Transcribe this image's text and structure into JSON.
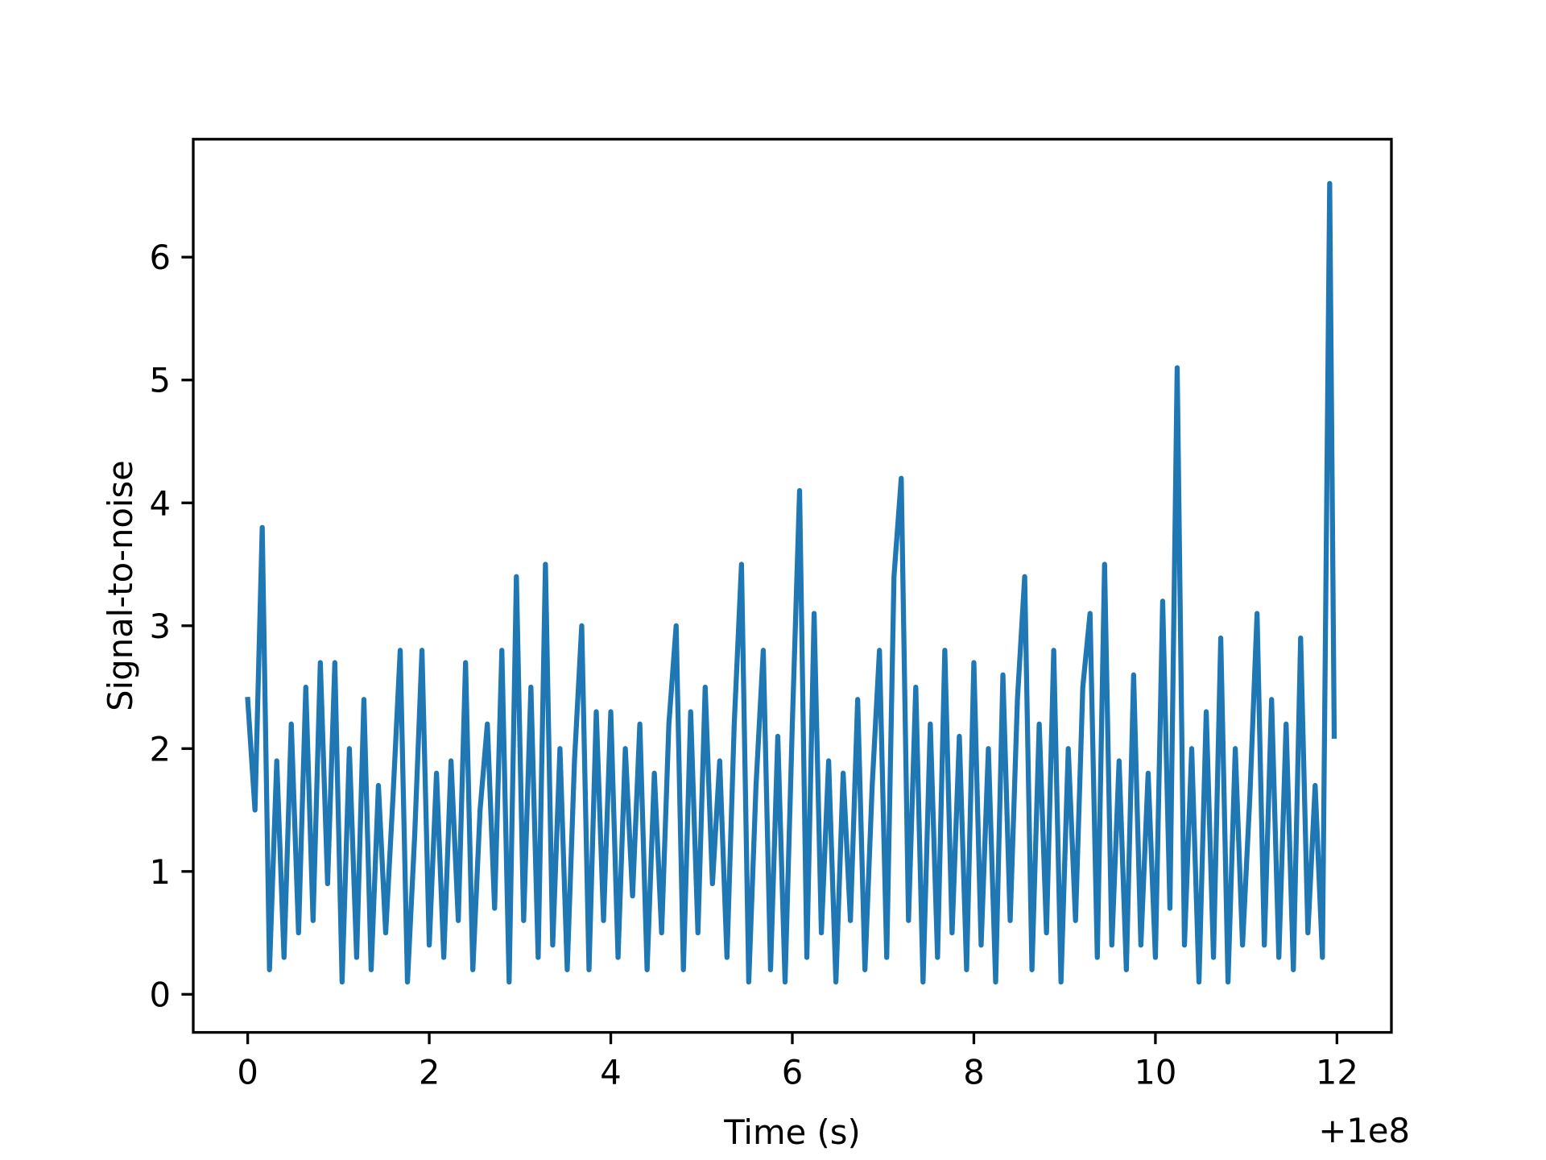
{
  "chart_data": {
    "type": "line",
    "xlabel": "Time (s)",
    "ylabel": "Signal-to-noise",
    "x_offset_label": "+1e8",
    "color": "#1f77b4",
    "x": [
      0,
      0.08,
      0.16,
      0.24,
      0.32,
      0.4,
      0.48,
      0.56,
      0.64,
      0.72,
      0.8,
      0.88,
      0.96,
      1.04,
      1.12,
      1.2,
      1.28,
      1.36,
      1.44,
      1.52,
      1.6,
      1.68,
      1.76,
      1.84,
      1.92,
      2,
      2.08,
      2.16,
      2.24,
      2.32,
      2.4,
      2.48,
      2.56,
      2.64,
      2.72,
      2.8,
      2.88,
      2.96,
      3.04,
      3.12,
      3.2,
      3.28,
      3.36,
      3.44,
      3.52,
      3.6,
      3.68,
      3.76,
      3.84,
      3.92,
      4,
      4.08,
      4.16,
      4.24,
      4.32,
      4.4,
      4.48,
      4.56,
      4.64,
      4.72,
      4.8,
      4.88,
      4.96,
      5.04,
      5.12,
      5.2,
      5.28,
      5.36,
      5.44,
      5.52,
      5.6,
      5.68,
      5.76,
      5.84,
      5.92,
      6,
      6.08,
      6.16,
      6.24,
      6.32,
      6.4,
      6.48,
      6.56,
      6.64,
      6.72,
      6.8,
      6.88,
      6.96,
      7.04,
      7.12,
      7.2,
      7.28,
      7.36,
      7.44,
      7.52,
      7.6,
      7.68,
      7.76,
      7.84,
      7.92,
      8,
      8.08,
      8.16,
      8.24,
      8.32,
      8.4,
      8.48,
      8.56,
      8.64,
      8.72,
      8.8,
      8.88,
      8.96,
      9.04,
      9.12,
      9.2,
      9.28,
      9.36,
      9.44,
      9.52,
      9.6,
      9.68,
      9.76,
      9.84,
      9.92,
      10,
      10.08,
      10.16,
      10.24,
      10.32,
      10.4,
      10.48,
      10.56,
      10.64,
      10.72,
      10.8,
      10.88,
      10.96,
      11.04,
      11.12,
      11.2,
      11.28,
      11.36,
      11.44,
      11.52,
      11.6,
      11.68,
      11.76,
      11.84,
      11.92,
      11.97
    ],
    "values": [
      2.4,
      1.5,
      3.8,
      0.2,
      1.9,
      0.3,
      2.2,
      0.5,
      2.5,
      0.6,
      2.7,
      0.9,
      2.7,
      0.1,
      2.0,
      0.3,
      2.4,
      0.2,
      1.7,
      0.5,
      1.6,
      2.8,
      0.1,
      1.3,
      2.8,
      0.4,
      1.8,
      0.3,
      1.9,
      0.6,
      2.7,
      0.2,
      1.5,
      2.2,
      0.7,
      2.8,
      0.1,
      3.4,
      0.6,
      2.5,
      0.3,
      3.5,
      0.4,
      2.0,
      0.2,
      1.9,
      3.0,
      0.2,
      2.3,
      0.6,
      2.3,
      0.3,
      2.0,
      0.8,
      2.2,
      0.2,
      1.8,
      0.5,
      2.2,
      3.0,
      0.2,
      2.3,
      0.5,
      2.5,
      0.9,
      1.9,
      0.3,
      2.2,
      3.5,
      0.1,
      1.7,
      2.8,
      0.2,
      2.1,
      0.1,
      2.2,
      4.1,
      0.3,
      3.1,
      0.5,
      1.9,
      0.1,
      1.8,
      0.6,
      2.4,
      0.2,
      1.7,
      2.8,
      0.3,
      3.4,
      4.2,
      0.6,
      2.5,
      0.1,
      2.2,
      0.3,
      2.8,
      0.5,
      2.1,
      0.2,
      2.7,
      0.4,
      2.0,
      0.1,
      2.6,
      0.6,
      2.4,
      3.4,
      0.2,
      2.2,
      0.5,
      2.8,
      0.1,
      2.0,
      0.6,
      2.5,
      3.1,
      0.3,
      3.5,
      0.4,
      1.9,
      0.2,
      2.6,
      0.4,
      1.8,
      0.3,
      3.2,
      0.7,
      5.1,
      0.4,
      2.0,
      0.1,
      2.3,
      0.3,
      2.9,
      0.1,
      2.0,
      0.4,
      1.6,
      3.1,
      0.4,
      2.4,
      0.3,
      2.2,
      0.2,
      2.9,
      0.5,
      1.7,
      0.3,
      6.6,
      2.1
    ],
    "xlim": [
      -0.6,
      12.6
    ],
    "ylim": [
      -0.31,
      6.96
    ],
    "xticks": [
      0,
      2,
      4,
      6,
      8,
      10,
      12
    ],
    "yticks": [
      0,
      1,
      2,
      3,
      4,
      5,
      6
    ]
  }
}
